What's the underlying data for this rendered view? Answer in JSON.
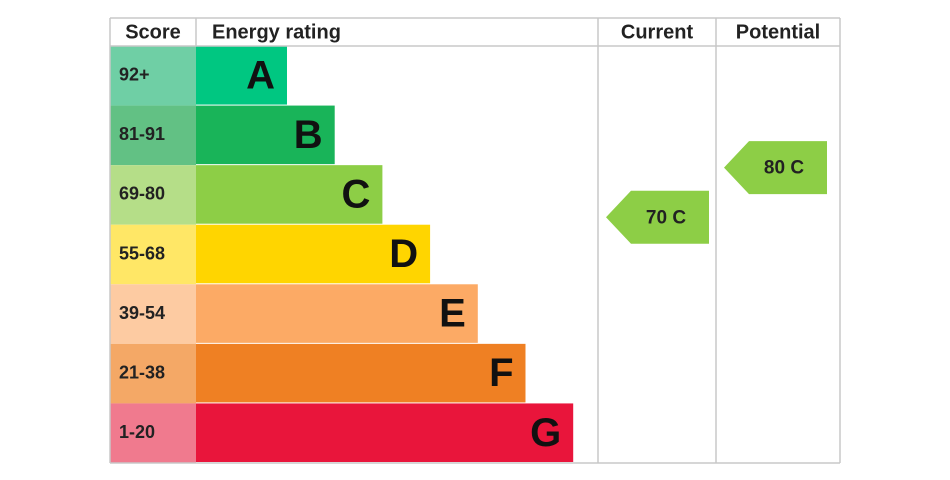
{
  "header": {
    "score": "Score",
    "rating": "Energy rating",
    "current": "Current",
    "potential": "Potential"
  },
  "bands": [
    {
      "score": "92+",
      "letter": "A",
      "color": "#00c781",
      "score_color": "#6fcfa5"
    },
    {
      "score": "81-91",
      "letter": "B",
      "color": "#19b459",
      "score_color": "#62c184"
    },
    {
      "score": "69-80",
      "letter": "C",
      "color": "#8dce46",
      "score_color": "#b5de88"
    },
    {
      "score": "55-68",
      "letter": "D",
      "color": "#ffd500",
      "score_color": "#ffe766"
    },
    {
      "score": "39-54",
      "letter": "E",
      "color": "#fcaa65",
      "score_color": "#fdcba2"
    },
    {
      "score": "21-38",
      "letter": "F",
      "color": "#ef8023",
      "score_color": "#f4a866"
    },
    {
      "score": "1-20",
      "letter": "G",
      "color": "#e9153b",
      "score_color": "#f07a8e"
    }
  ],
  "current": {
    "value": 70,
    "label": "70 C",
    "color": "#8dce46"
  },
  "potential": {
    "value": 80,
    "label": "80 C",
    "color": "#8dce46"
  }
}
